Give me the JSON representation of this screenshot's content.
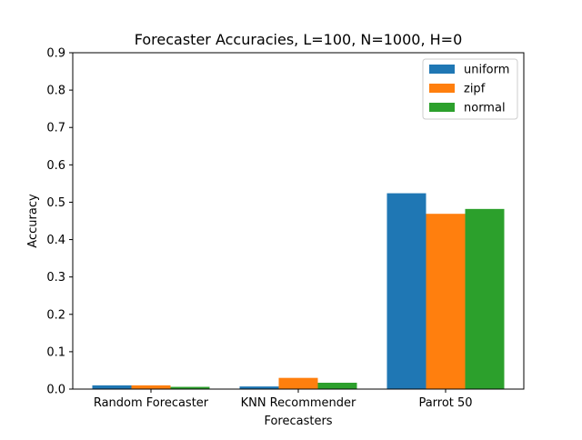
{
  "chart_data": {
    "type": "bar",
    "title": "Forecaster Accuracies, L=100, N=1000, H=0",
    "xlabel": "Forecasters",
    "ylabel": "Accuracy",
    "ylim": [
      0,
      0.9
    ],
    "yticks": [
      "0.0",
      "0.1",
      "0.2",
      "0.3",
      "0.4",
      "0.5",
      "0.6",
      "0.7",
      "0.8",
      "0.9"
    ],
    "categories": [
      "Random Forecaster",
      "KNN Recommender",
      "Parrot 50"
    ],
    "series": [
      {
        "name": "uniform",
        "color": "#1f77b4",
        "values": [
          0.01,
          0.007,
          0.524
        ]
      },
      {
        "name": "zipf",
        "color": "#ff7f0e",
        "values": [
          0.01,
          0.03,
          0.469
        ]
      },
      {
        "name": "normal",
        "color": "#2ca02c",
        "values": [
          0.006,
          0.017,
          0.482
        ]
      }
    ],
    "legend_position": "top-right",
    "grid": false
  }
}
